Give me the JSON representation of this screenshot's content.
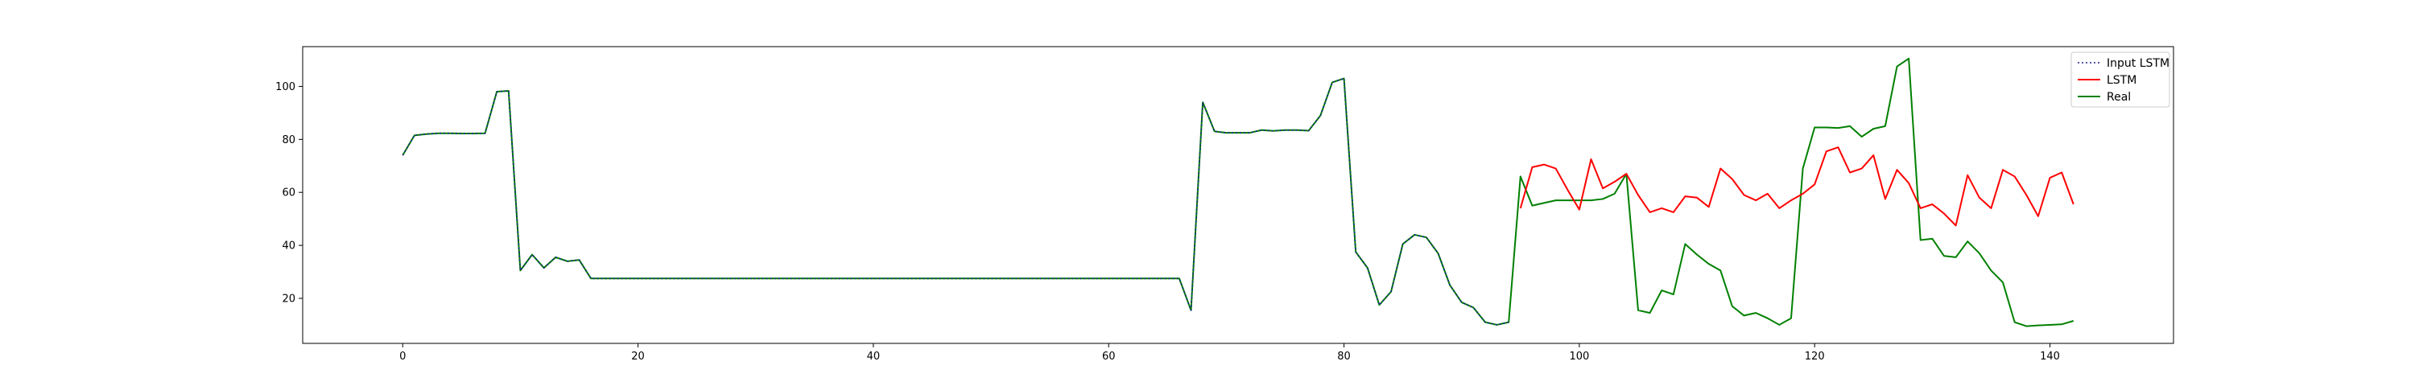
{
  "chart_data": {
    "type": "line",
    "title": "",
    "xlabel": "",
    "ylabel": "",
    "xlim": [
      -8.5,
      150.5
    ],
    "ylim": [
      3,
      115
    ],
    "xticks": [
      0,
      20,
      40,
      60,
      80,
      100,
      120,
      140
    ],
    "yticks": [
      20,
      40,
      60,
      80,
      100
    ],
    "grid": false,
    "legend_location": "top-right",
    "series": [
      {
        "name": "Input LSTM",
        "color": "#1f1f8f",
        "style": "dotted",
        "x_start": 0,
        "values": [
          74,
          81.5,
          82,
          82.3,
          82.3,
          82.2,
          82.2,
          82.3,
          98,
          98.3,
          30.5,
          36.5,
          31.5,
          35.5,
          34,
          34.5,
          27.5,
          27.5,
          27.5,
          27.5,
          27.5,
          27.5,
          27.5,
          27.5,
          27.5,
          27.5,
          27.5,
          27.5,
          27.5,
          27.5,
          27.5,
          27.5,
          27.5,
          27.5,
          27.5,
          27.5,
          27.5,
          27.5,
          27.5,
          27.5,
          27.5,
          27.5,
          27.5,
          27.5,
          27.5,
          27.5,
          27.5,
          27.5,
          27.5,
          27.5,
          27.5,
          27.5,
          27.5,
          27.5,
          27.5,
          27.5,
          27.5,
          27.5,
          27.5,
          27.5,
          27.5,
          27.5,
          27.5,
          27.5,
          27.5,
          27.5,
          27.5,
          15.5,
          94,
          83,
          82.5,
          82.5,
          82.5,
          83.5,
          83.2,
          83.5,
          83.5,
          83.3,
          89,
          101.5,
          103,
          37.5,
          31.5,
          17.5,
          22.5,
          40.5,
          44,
          43,
          37,
          25,
          18.5,
          16.5,
          11,
          10,
          11
        ]
      },
      {
        "name": "LSTM",
        "color": "#ff0000",
        "style": "solid",
        "x_start": 95,
        "values": [
          54,
          69.5,
          70.5,
          69,
          61,
          53.5,
          72.5,
          61.5,
          64,
          67,
          59,
          52.5,
          54,
          52.5,
          58.5,
          58,
          54.5,
          69,
          65,
          59,
          57,
          59.5,
          54,
          57,
          59.5,
          63,
          75.5,
          77,
          67.5,
          69,
          74,
          57.5,
          68.5,
          63.5,
          54,
          55.5,
          52,
          47.5,
          66.5,
          58,
          54,
          68.5,
          66,
          59,
          51,
          65.5,
          67.5,
          55.5
        ]
      },
      {
        "name": "Real",
        "color": "#008000",
        "style": "solid",
        "x_start": 0,
        "values": [
          74,
          81.5,
          82,
          82.3,
          82.3,
          82.2,
          82.2,
          82.3,
          98,
          98.3,
          30.5,
          36.5,
          31.5,
          35.5,
          34,
          34.5,
          27.5,
          27.5,
          27.5,
          27.5,
          27.5,
          27.5,
          27.5,
          27.5,
          27.5,
          27.5,
          27.5,
          27.5,
          27.5,
          27.5,
          27.5,
          27.5,
          27.5,
          27.5,
          27.5,
          27.5,
          27.5,
          27.5,
          27.5,
          27.5,
          27.5,
          27.5,
          27.5,
          27.5,
          27.5,
          27.5,
          27.5,
          27.5,
          27.5,
          27.5,
          27.5,
          27.5,
          27.5,
          27.5,
          27.5,
          27.5,
          27.5,
          27.5,
          27.5,
          27.5,
          27.5,
          27.5,
          27.5,
          27.5,
          27.5,
          27.5,
          27.5,
          15.5,
          94,
          83,
          82.5,
          82.5,
          82.5,
          83.5,
          83.2,
          83.5,
          83.5,
          83.3,
          89,
          101.5,
          103,
          37.5,
          31.5,
          17.5,
          22.5,
          40.5,
          44,
          43,
          37,
          25,
          18.5,
          16.5,
          11,
          10,
          11,
          66,
          55,
          56,
          57,
          57,
          57,
          57,
          57.5,
          59.5,
          67,
          15.5,
          14.5,
          23,
          21.5,
          40.5,
          36.5,
          33,
          30.5,
          17,
          13.5,
          14.5,
          12.5,
          10,
          12.5,
          69,
          84.5,
          84.5,
          84.3,
          85,
          81,
          84,
          85,
          107.5,
          110.5,
          42,
          42.5,
          36,
          35.5,
          41.5,
          37,
          30.5,
          26,
          11,
          9.5,
          9.8,
          10,
          10.2,
          11.5
        ]
      }
    ]
  }
}
